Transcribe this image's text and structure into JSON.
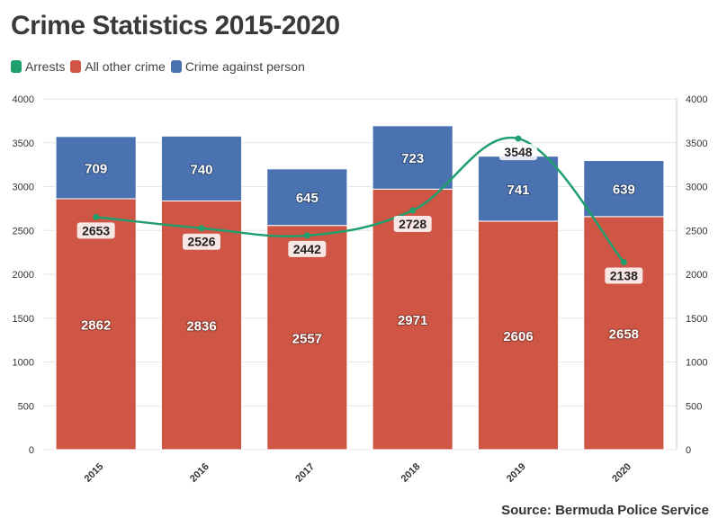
{
  "chart_data": {
    "type": "bar",
    "title": "Crime Statistics 2015-2020",
    "categories": [
      "2015",
      "2016",
      "2017",
      "2018",
      "2019",
      "2020"
    ],
    "stacked": true,
    "series": [
      {
        "name": "All other crime",
        "type": "bar",
        "color": "#cf5645",
        "values": [
          2862,
          2836,
          2557,
          2971,
          2606,
          2658
        ]
      },
      {
        "name": "Crime against person",
        "type": "bar",
        "color": "#4a72b0",
        "values": [
          709,
          740,
          645,
          723,
          741,
          639
        ]
      },
      {
        "name": "Arrests",
        "type": "line",
        "color": "#1f9e6e",
        "values": [
          2653,
          2526,
          2442,
          2728,
          3548,
          2138
        ]
      }
    ],
    "legend_order": [
      "Arrests",
      "All other crime",
      "Crime against person"
    ],
    "legend_position": "top-left",
    "ylim": [
      0,
      4000
    ],
    "yticks": [
      "0",
      "500",
      "1000",
      "1500",
      "2000",
      "2500",
      "3000",
      "3500",
      "4000"
    ],
    "y2ticks": [
      "0",
      "500",
      "1000",
      "1500",
      "2000",
      "2500",
      "3000",
      "3500",
      "4000"
    ],
    "grid": true,
    "source": "Source: Bermuda Police Service"
  }
}
